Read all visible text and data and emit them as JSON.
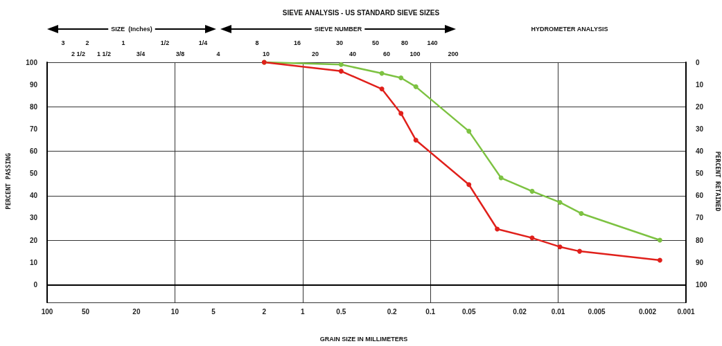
{
  "chart_data": {
    "type": "line",
    "title": "SIEVE ANALYSIS - US STANDARD SIEVE SIZES",
    "xlabel": "GRAIN SIZE IN MILLIMETERS",
    "ylabel": "PERCENT PASSING",
    "y2label": "PERCENT RETAINED",
    "annotations": [
      "SIZE  (Inches)",
      "SIEVE NUMBER",
      "HYDROMETER ANALYSIS",
      "3",
      "2 1/2",
      "2",
      "1 1/2",
      "1",
      "3/4",
      "1/2",
      "3/8",
      "1/4",
      "4",
      "8",
      "10",
      "16",
      "20",
      "30",
      "40",
      "50",
      "60",
      "80",
      "100",
      "140",
      "200"
    ],
    "series": [
      {
        "color": "#7dc242",
        "x": [
          2,
          0.5,
          0.24,
          0.17,
          0.13,
          0.05,
          0.028,
          0.016,
          0.0097,
          0.0066,
          0.0016
        ],
        "values": [
          100,
          99,
          95,
          93,
          89,
          69,
          48,
          42,
          37,
          32,
          20
        ]
      },
      {
        "color": "#e0201b",
        "x": [
          2,
          0.5,
          0.24,
          0.17,
          0.13,
          0.05,
          0.03,
          0.016,
          0.0097,
          0.0068,
          0.0016
        ],
        "values": [
          100,
          96,
          88,
          77,
          65,
          45,
          25,
          21,
          17,
          15,
          11
        ]
      }
    ],
    "log": "x",
    "marker": "circle",
    "grid": true,
    "xlim": [
      100,
      0.001
    ],
    "xticks": [
      100,
      50,
      20,
      10,
      5,
      2,
      1,
      0.5,
      0.2,
      0.1,
      0.05,
      0.02,
      0.01,
      0.005,
      0.002,
      0.001
    ],
    "ylim": [
      -8,
      100
    ],
    "yticks": [
      0,
      10,
      20,
      30,
      40,
      50,
      60,
      70,
      80,
      90,
      100
    ],
    "y2lim": [
      108,
      0
    ],
    "y2ticks": [
      0,
      10,
      20,
      30,
      40,
      50,
      60,
      70,
      80,
      90,
      100
    ]
  }
}
